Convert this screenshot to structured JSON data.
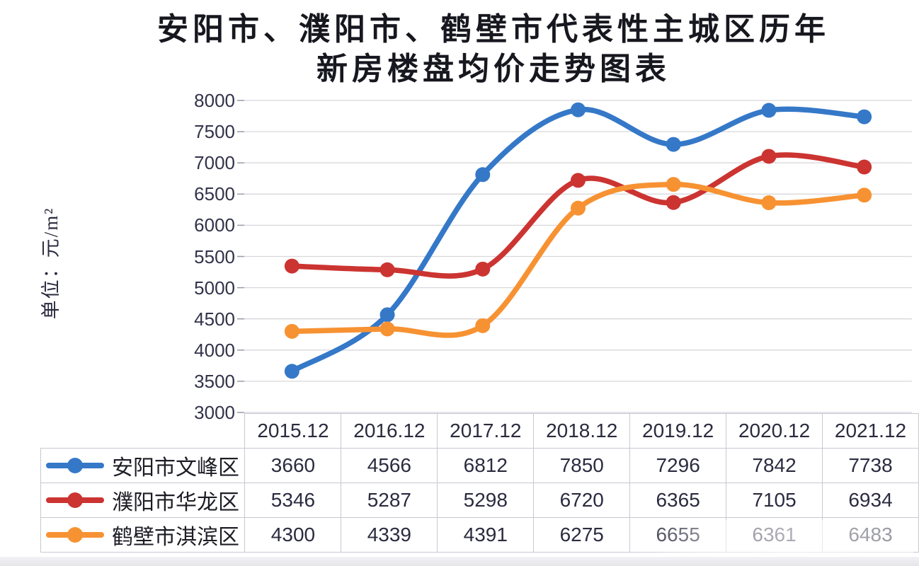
{
  "page": {
    "title_line1": "安阳市、濮阳市、鹤壁市代表性主城区历年",
    "title_line2": "新房楼盘均价走势图表"
  },
  "chart_data": {
    "type": "line",
    "title": "安阳市、濮阳市、鹤壁市代表性主城区历年新房楼盘均价走势图表",
    "ylabel": "单位：元/m²",
    "xlabel": "",
    "categories": [
      "2015.12",
      "2016.12",
      "2017.12",
      "2018.12",
      "2019.12",
      "2020.12",
      "2021.12"
    ],
    "series": [
      {
        "name": "安阳市文峰区",
        "color": "#3578C8",
        "values": [
          3660,
          4566,
          6812,
          7850,
          7296,
          7842,
          7738
        ]
      },
      {
        "name": "濮阳市华龙区",
        "color": "#CB3431",
        "values": [
          5346,
          5287,
          5298,
          6720,
          6365,
          7105,
          6934
        ]
      },
      {
        "name": "鹤壁市淇滨区",
        "color": "#F79233",
        "values": [
          4300,
          4339,
          4391,
          6275,
          6655,
          6361,
          6483
        ]
      }
    ],
    "ylim": [
      3000,
      8000
    ],
    "ytick_step": 500,
    "y_tick_labels": [
      "3000",
      "3500",
      "4000",
      "4500",
      "5000",
      "5500",
      "6000",
      "6500",
      "7000",
      "7500",
      "8000"
    ],
    "grid": true,
    "smooth_lines": true,
    "markers": "circle",
    "legend_position": "data-table-left-column",
    "gridline_color": "#d8d8dd",
    "tick_color": "#9a9aa8",
    "axis_text_color": "#32324a"
  }
}
